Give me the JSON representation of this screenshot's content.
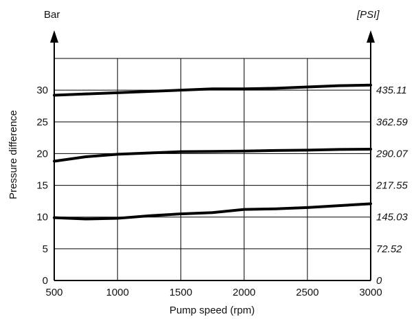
{
  "chart_data": {
    "type": "line",
    "xlabel": "Pump speed (rpm)",
    "ylabel": "Pressure difference",
    "y_unit_left": "Bar",
    "y_unit_right": "[PSI]",
    "x_ticks": [
      "500",
      "1000",
      "1500",
      "2000",
      "2500",
      "3000"
    ],
    "y_ticks_left": [
      "0",
      "5",
      "10",
      "15",
      "20",
      "25",
      "30"
    ],
    "y_ticks_right": [
      "0",
      "72.52",
      "145.03",
      "217.55",
      "290.07",
      "362.59",
      "435.11"
    ],
    "xlim": [
      500,
      3000
    ],
    "ylim": [
      0,
      35
    ],
    "grid": true,
    "x": [
      500,
      750,
      1000,
      1250,
      1500,
      1750,
      2000,
      2250,
      2500,
      2750,
      3000
    ],
    "series": [
      {
        "values": [
          9.9,
          9.7,
          9.8,
          10.2,
          10.5,
          10.7,
          11.2,
          11.3,
          11.5,
          11.8,
          12.1
        ]
      },
      {
        "values": [
          18.8,
          19.5,
          19.9,
          20.1,
          20.3,
          20.35,
          20.4,
          20.5,
          20.55,
          20.65,
          20.7
        ]
      },
      {
        "values": [
          29.2,
          29.4,
          29.6,
          29.8,
          30.0,
          30.2,
          30.2,
          30.3,
          30.5,
          30.7,
          30.8
        ]
      }
    ]
  }
}
